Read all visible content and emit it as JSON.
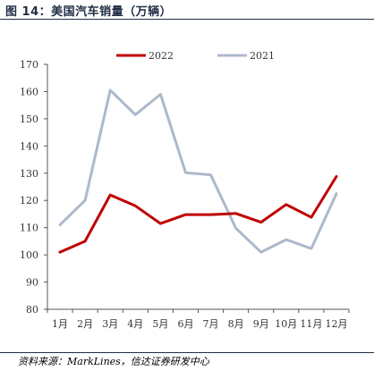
{
  "figure": {
    "title": "图 14：美国汽车销量（万辆）",
    "source": "资料来源：MarkLines，信达证券研发中心"
  },
  "chart_data": {
    "type": "line",
    "title": "",
    "xlabel": "",
    "ylabel": "",
    "categories": [
      "1月",
      "2月",
      "3月",
      "4月",
      "5月",
      "6月",
      "7月",
      "8月",
      "9月",
      "10月",
      "11月",
      "12月"
    ],
    "ylim": [
      80,
      170
    ],
    "yticks": [
      80,
      90,
      100,
      110,
      120,
      130,
      140,
      150,
      160,
      170
    ],
    "grid": false,
    "legend_position": "top",
    "series": [
      {
        "name": "2022",
        "color": "#c00000",
        "values": [
          101,
          105,
          122,
          118,
          111.5,
          114.8,
          114.8,
          115.2,
          112,
          118.5,
          113.8,
          128.8
        ]
      },
      {
        "name": "2021",
        "color": "#acb9ca",
        "values": [
          111,
          120,
          160.5,
          151.5,
          159,
          130.2,
          129.4,
          109.8,
          101,
          105.6,
          102.3,
          122.5
        ]
      }
    ]
  }
}
